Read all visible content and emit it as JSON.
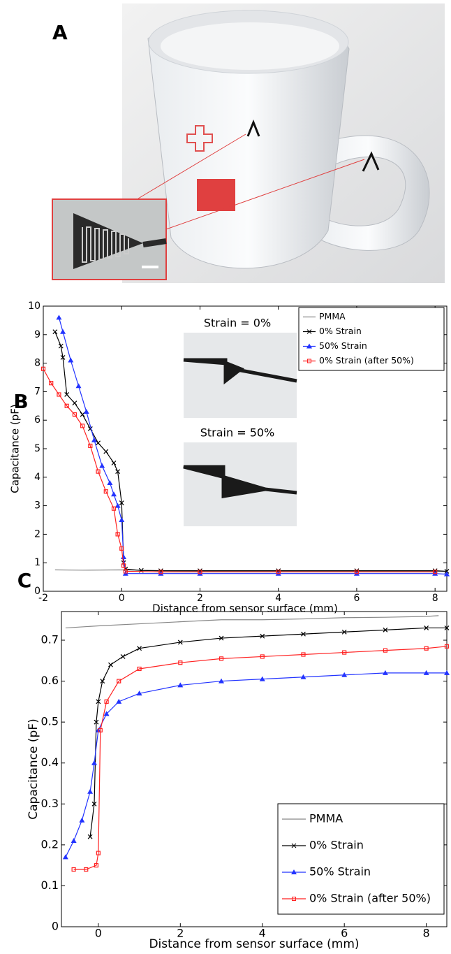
{
  "panel_a": {
    "label": "A"
  },
  "chart_data": [
    {
      "type": "line",
      "label": "B",
      "xlabel": "Distance from sensor surface (mm)",
      "ylabel": "Capacitance (pF)",
      "xlim": [
        -2,
        8.3
      ],
      "ylim": [
        0,
        10
      ],
      "xticks": [
        -2,
        0,
        2,
        4,
        6,
        8
      ],
      "yticks": [
        0,
        1,
        2,
        3,
        4,
        5,
        6,
        7,
        8,
        9,
        10
      ],
      "legend": "upper right",
      "annotations": [
        "Strain = 0%",
        "Strain = 50%"
      ],
      "series": [
        {
          "name": "PMMA",
          "color": "#888888",
          "marker": "none",
          "x": [
            -1.7,
            -1,
            0,
            1,
            2,
            4,
            6,
            8,
            8.3
          ],
          "values": [
            0.75,
            0.74,
            0.75,
            0.72,
            0.7,
            0.7,
            0.7,
            0.7,
            0.7
          ]
        },
        {
          "name": "0% Strain",
          "color": "#000000",
          "marker": "x",
          "x": [
            -1.7,
            -1.55,
            -1.5,
            -1.4,
            -1.2,
            -1.0,
            -0.8,
            -0.6,
            -0.4,
            -0.2,
            -0.1,
            0,
            0.05,
            0.1,
            0.5,
            1,
            2,
            4,
            6,
            8,
            8.3
          ],
          "values": [
            9.1,
            8.6,
            8.2,
            6.9,
            6.6,
            6.2,
            5.7,
            5.2,
            4.9,
            4.5,
            4.2,
            3.1,
            1.0,
            0.78,
            0.73,
            0.72,
            0.72,
            0.72,
            0.72,
            0.72,
            0.7
          ]
        },
        {
          "name": "50% Strain",
          "color": "#2233ff",
          "marker": "triangle",
          "x": [
            -1.6,
            -1.5,
            -1.3,
            -1.1,
            -0.9,
            -0.7,
            -0.5,
            -0.3,
            -0.2,
            -0.1,
            0,
            0.05,
            0.1,
            1,
            2,
            4,
            6,
            8,
            8.3
          ],
          "values": [
            9.6,
            9.1,
            8.1,
            7.2,
            6.3,
            5.3,
            4.4,
            3.8,
            3.4,
            3.0,
            2.5,
            1.2,
            0.62,
            0.62,
            0.62,
            0.62,
            0.62,
            0.62,
            0.6
          ]
        },
        {
          "name": "0% Strain (after 50%)",
          "color": "#ff2222",
          "marker": "square",
          "x": [
            -2,
            -1.8,
            -1.6,
            -1.4,
            -1.2,
            -1.0,
            -0.8,
            -0.6,
            -0.4,
            -0.2,
            -0.1,
            0,
            0.05,
            0.1,
            1,
            2,
            4,
            6,
            8
          ],
          "values": [
            7.8,
            7.3,
            6.9,
            6.5,
            6.2,
            5.8,
            5.1,
            4.2,
            3.5,
            2.9,
            2.0,
            1.5,
            0.9,
            0.7,
            0.68,
            0.68,
            0.68,
            0.68,
            0.68
          ]
        }
      ]
    },
    {
      "type": "line",
      "label": "C",
      "xlabel": "Distance from sensor surface (mm)",
      "ylabel": "Capacitance (pF)",
      "xlim": [
        -0.9,
        8.5
      ],
      "ylim": [
        0,
        0.77
      ],
      "xticks": [
        0,
        2,
        4,
        6,
        8
      ],
      "yticks": [
        0,
        0.1,
        0.2,
        0.3,
        0.4,
        0.5,
        0.6,
        0.7
      ],
      "legend": "lower right",
      "series": [
        {
          "name": "PMMA",
          "color": "#888888",
          "marker": "none",
          "x": [
            -0.8,
            0,
            1,
            2,
            3,
            4,
            5,
            6,
            7,
            8,
            8.3
          ],
          "values": [
            0.73,
            0.735,
            0.74,
            0.745,
            0.75,
            0.75,
            0.752,
            0.755,
            0.756,
            0.758,
            0.76
          ]
        },
        {
          "name": "0% Strain",
          "color": "#000000",
          "marker": "x",
          "x": [
            -0.2,
            -0.1,
            -0.05,
            0,
            0.1,
            0.3,
            0.6,
            1,
            2,
            3,
            4,
            5,
            6,
            7,
            8,
            8.5
          ],
          "values": [
            0.22,
            0.3,
            0.5,
            0.55,
            0.6,
            0.64,
            0.66,
            0.68,
            0.695,
            0.705,
            0.71,
            0.715,
            0.72,
            0.725,
            0.73,
            0.73
          ]
        },
        {
          "name": "50% Strain",
          "color": "#2233ff",
          "marker": "triangle",
          "x": [
            -0.8,
            -0.6,
            -0.4,
            -0.2,
            -0.1,
            0,
            0.2,
            0.5,
            1,
            2,
            3,
            4,
            5,
            6,
            7,
            8,
            8.5
          ],
          "values": [
            0.17,
            0.21,
            0.26,
            0.33,
            0.4,
            0.48,
            0.52,
            0.55,
            0.57,
            0.59,
            0.6,
            0.605,
            0.61,
            0.615,
            0.62,
            0.62,
            0.62
          ]
        },
        {
          "name": "0% Strain (after 50%)",
          "color": "#ff2222",
          "marker": "square",
          "x": [
            -0.6,
            -0.3,
            -0.05,
            0,
            0.05,
            0.2,
            0.5,
            1,
            2,
            3,
            4,
            5,
            6,
            7,
            8,
            8.5
          ],
          "values": [
            0.14,
            0.14,
            0.15,
            0.18,
            0.48,
            0.55,
            0.6,
            0.63,
            0.645,
            0.655,
            0.66,
            0.665,
            0.67,
            0.675,
            0.68,
            0.685
          ]
        }
      ]
    }
  ]
}
